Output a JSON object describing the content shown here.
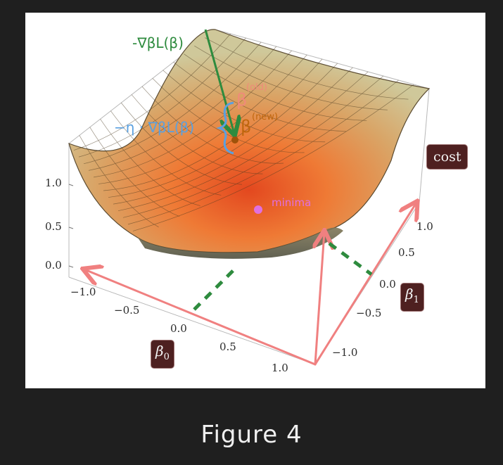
{
  "caption": "Figure 4",
  "labels": {
    "cost": "cost",
    "beta0_base": "β",
    "beta0_sub": "0",
    "beta1_base": "β",
    "beta1_sub": "1",
    "minima": "minima",
    "neg_gradient": "-∇βL(β)",
    "step_term": "−η · ∇βL(β)",
    "beta_old_sup": "(old)",
    "beta_new_sup": "(new)",
    "beta_symbol": "β"
  },
  "axes": {
    "z_ticks": [
      "1.0",
      "0.5",
      "0.0"
    ],
    "x_ticks": [
      "−1.0",
      "−0.5",
      "0.0",
      "0.5",
      "1.0"
    ],
    "y_ticks": [
      "1.0",
      "0.5",
      "0.0",
      "−0.5",
      "−1.0"
    ]
  },
  "colors": {
    "background": "#1f1f1f",
    "axis_arrow": "#f08080",
    "dashed": "#2e8b3e",
    "gradient_arrow": "#2e8b3e",
    "step_annotation": "#5aa0e0",
    "beta_old": "#f08a7a",
    "beta_new": "#c0660d",
    "minima": "#e070e0",
    "tag_bg": "#4e2020"
  }
}
